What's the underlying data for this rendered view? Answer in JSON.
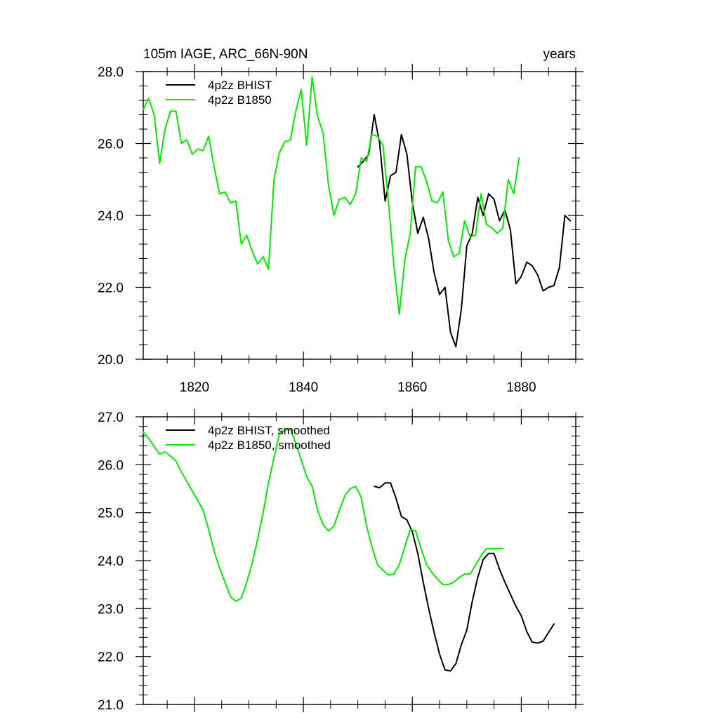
{
  "chart_data": [
    {
      "type": "line",
      "title": "105m IAGE, ARC_66N-90N",
      "title_right": "years",
      "xlabel": "",
      "ylabel": "",
      "xlim": [
        1810.6,
        1890.0
      ],
      "ylim": [
        20.0,
        28.0
      ],
      "xticks": [
        1820,
        1840,
        1860,
        1880
      ],
      "xtick_labels": [
        "1820",
        "1840",
        "1860",
        "1880"
      ],
      "yticks": [
        20.0,
        22.0,
        24.0,
        26.0,
        28.0
      ],
      "ytick_labels": [
        "20.0",
        "22.0",
        "24.0",
        "26.0",
        "28.0"
      ],
      "grid": false,
      "legend_position": "top-left",
      "series": [
        {
          "name": "4p2z BHIST",
          "color": "#000000",
          "x": [
            1850,
            1851,
            1852,
            1853,
            1854,
            1855,
            1856,
            1857,
            1858,
            1859,
            1860,
            1861,
            1862,
            1863,
            1864,
            1865,
            1866,
            1867,
            1868,
            1869,
            1870,
            1871,
            1872,
            1873,
            1874,
            1875,
            1876,
            1877,
            1878,
            1879,
            1880,
            1881,
            1882,
            1883,
            1884,
            1885,
            1886,
            1887,
            1888,
            1889
          ],
          "y": [
            25.35,
            25.5,
            25.7,
            26.8,
            26.0,
            24.4,
            25.1,
            25.2,
            26.25,
            25.7,
            24.35,
            23.5,
            23.95,
            23.35,
            22.4,
            21.8,
            22.0,
            20.75,
            20.35,
            21.4,
            23.15,
            23.5,
            24.5,
            24.0,
            24.6,
            24.45,
            23.85,
            24.15,
            23.6,
            22.1,
            22.3,
            22.7,
            22.6,
            22.35,
            21.9,
            22.0,
            22.05,
            22.55,
            24.0,
            23.85
          ]
        },
        {
          "name": "4p2z B1850",
          "color": "#00ee00",
          "x": [
            1810.6,
            1811.6,
            1812.6,
            1813.6,
            1814.6,
            1815.6,
            1816.6,
            1817.6,
            1818.6,
            1819.6,
            1820.6,
            1821.6,
            1822.6,
            1823.6,
            1824.6,
            1825.6,
            1826.6,
            1827.6,
            1828.6,
            1829.6,
            1830.6,
            1831.6,
            1832.6,
            1833.6,
            1834.6,
            1835.6,
            1836.6,
            1837.6,
            1838.6,
            1839.6,
            1840.6,
            1841.6,
            1842.6,
            1843.6,
            1844.6,
            1845.6,
            1846.6,
            1847.6,
            1848.6,
            1849.6,
            1850.6,
            1851.6,
            1852.6,
            1853.6,
            1854.6,
            1855.6,
            1856.6,
            1857.6,
            1858.6,
            1859.6,
            1860.6,
            1861.6,
            1862.6,
            1863.6,
            1864.6,
            1865.6,
            1866.6,
            1867.6,
            1868.6,
            1869.6,
            1870.6,
            1871.6,
            1872.6,
            1873.6,
            1874.6,
            1875.6,
            1876.6,
            1877.6,
            1878.6,
            1879.6
          ],
          "y": [
            26.95,
            27.25,
            26.8,
            25.45,
            26.4,
            26.9,
            26.9,
            26.0,
            26.1,
            25.7,
            25.85,
            25.8,
            26.2,
            25.35,
            24.6,
            24.65,
            24.35,
            24.4,
            23.2,
            23.45,
            23.0,
            22.65,
            22.85,
            22.5,
            25.0,
            25.75,
            26.05,
            26.1,
            26.9,
            27.5,
            25.95,
            27.85,
            26.75,
            26.3,
            24.85,
            24.0,
            24.45,
            24.5,
            24.3,
            24.6,
            25.6,
            25.5,
            26.25,
            26.2,
            25.95,
            24.4,
            22.6,
            21.25,
            22.75,
            23.5,
            25.35,
            25.35,
            24.95,
            24.4,
            24.35,
            24.65,
            23.3,
            22.85,
            22.95,
            23.85,
            23.4,
            23.45,
            24.6,
            23.75,
            23.65,
            23.5,
            23.65,
            25.0,
            24.6,
            25.6
          ]
        }
      ]
    },
    {
      "type": "line",
      "title": "",
      "xlabel": "",
      "ylabel": "",
      "xlim": [
        1810.6,
        1890.0
      ],
      "ylim": [
        21.0,
        27.0
      ],
      "xticks": [
        1820,
        1840,
        1860,
        1880
      ],
      "yticks": [
        21.0,
        22.0,
        23.0,
        24.0,
        25.0,
        26.0,
        27.0
      ],
      "ytick_labels": [
        "21.0",
        "22.0",
        "23.0",
        "24.0",
        "25.0",
        "26.0",
        "27.0"
      ],
      "grid": false,
      "legend_position": "top-left",
      "series": [
        {
          "name": "4p2z BHIST, smoothed",
          "color": "#000000",
          "x": [
            1853,
            1854,
            1855,
            1856,
            1857,
            1858,
            1859,
            1860,
            1861,
            1862,
            1863,
            1864,
            1865,
            1866,
            1867,
            1868,
            1869,
            1870,
            1871,
            1872,
            1873,
            1874,
            1875,
            1876,
            1877,
            1878,
            1879,
            1880,
            1881,
            1882,
            1883,
            1884,
            1885,
            1886
          ],
          "y": [
            25.55,
            25.52,
            25.62,
            25.62,
            25.3,
            24.92,
            24.85,
            24.6,
            24.15,
            23.55,
            23.0,
            22.5,
            22.05,
            21.72,
            21.7,
            21.85,
            22.25,
            22.55,
            23.15,
            23.65,
            24.02,
            24.15,
            24.15,
            23.82,
            23.55,
            23.3,
            23.05,
            22.85,
            22.52,
            22.3,
            22.28,
            22.32,
            22.5,
            22.68
          ]
        },
        {
          "name": "4p2z B1850, smoothed",
          "color": "#00ee00",
          "x": [
            1810.6,
            1811.6,
            1812.6,
            1813.6,
            1814.6,
            1815.6,
            1816.6,
            1817.6,
            1818.6,
            1819.6,
            1820.6,
            1821.6,
            1822.6,
            1823.6,
            1824.6,
            1825.6,
            1826.6,
            1827.6,
            1828.6,
            1829.6,
            1830.6,
            1831.6,
            1832.6,
            1833.6,
            1834.6,
            1835.6,
            1836.6,
            1837.6,
            1838.6,
            1839.6,
            1840.6,
            1841.6,
            1842.6,
            1843.6,
            1844.6,
            1845.6,
            1846.6,
            1847.6,
            1848.6,
            1849.6,
            1850.6,
            1851.6,
            1852.6,
            1853.6,
            1854.6,
            1855.6,
            1856.6,
            1857.6,
            1858.6,
            1859.6,
            1860.6,
            1861.6,
            1862.6,
            1863.6,
            1864.6,
            1865.6,
            1866.6,
            1867.6,
            1868.6,
            1869.6,
            1870.6,
            1871.6,
            1872.6,
            1873.6,
            1874.6,
            1875.6,
            1876.6
          ],
          "y": [
            26.68,
            26.55,
            26.38,
            26.22,
            26.27,
            26.18,
            26.08,
            25.85,
            25.65,
            25.45,
            25.25,
            25.05,
            24.65,
            24.2,
            23.85,
            23.55,
            23.25,
            23.15,
            23.22,
            23.55,
            23.95,
            24.45,
            25.0,
            25.62,
            26.15,
            26.65,
            26.72,
            26.75,
            26.45,
            26.1,
            25.75,
            25.55,
            25.05,
            24.75,
            24.62,
            24.72,
            25.05,
            25.35,
            25.5,
            25.55,
            25.32,
            24.72,
            24.28,
            23.92,
            23.8,
            23.7,
            23.72,
            23.92,
            24.28,
            24.65,
            24.62,
            24.25,
            23.92,
            23.75,
            23.62,
            23.5,
            23.5,
            23.55,
            23.65,
            23.72,
            23.72,
            23.9,
            24.1,
            24.25,
            24.25,
            24.25,
            24.25
          ]
        }
      ]
    }
  ]
}
